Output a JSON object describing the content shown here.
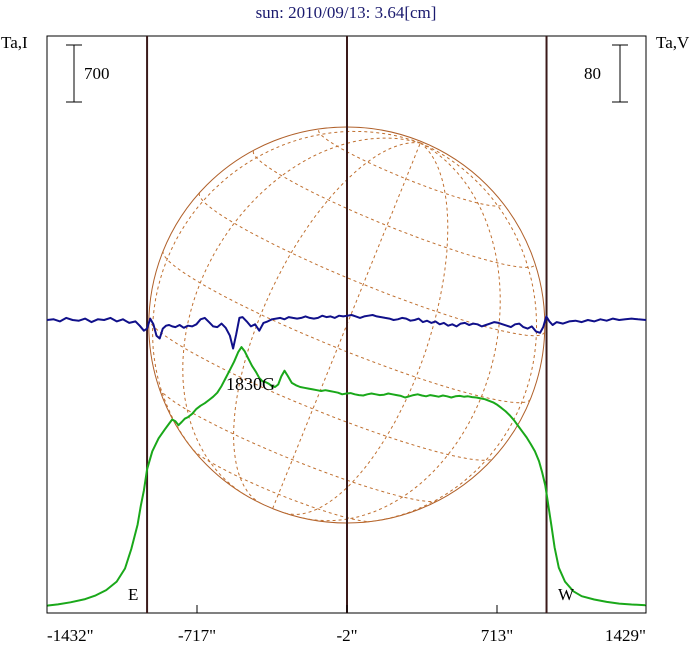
{
  "title": "sun: 2010/09/13: 3.64[cm]",
  "left_axis_label": "Ta,I",
  "right_axis_label": "Ta,V",
  "left_scale_bar_label": "700",
  "right_scale_bar_label": "80",
  "limb_labels": {
    "east": "E",
    "west": "W"
  },
  "annotation": "1830G",
  "x_tick_labels": [
    "-1432\"",
    "-717\"",
    "-2\"",
    "713\"",
    "1429\""
  ],
  "colors": {
    "title": "#1a1a6e",
    "intensity": "#1aa81a",
    "polarization": "#10108a",
    "limb_lines": "#3a1a1a",
    "disk": "#b0602a",
    "grid": "#c07030"
  },
  "chart_data": {
    "type": "line",
    "title": "sun: 2010/09/13: 3.64[cm]",
    "xlabel": "",
    "x_ticks": [
      -1432,
      -717,
      -2,
      713,
      1429
    ],
    "xlim": [
      -1432,
      1429
    ],
    "limb_positions": [
      -955,
      951
    ],
    "scale_bars": {
      "intensity": 700,
      "polarization": 80
    },
    "series": [
      {
        "name": "Ta,I",
        "axis": "left",
        "x": [
          -1432,
          -1380,
          -1320,
          -1250,
          -1200,
          -1150,
          -1100,
          -1060,
          -1030,
          -1000,
          -985,
          -970,
          -955,
          -930,
          -900,
          -870,
          -850,
          -835,
          -820,
          -805,
          -790,
          -775,
          -760,
          -740,
          -720,
          -700,
          -680,
          -660,
          -640,
          -620,
          -600,
          -580,
          -560,
          -540,
          -520,
          -505,
          -490,
          -475,
          -455,
          -435,
          -420,
          -405,
          -390,
          -375,
          -360,
          -345,
          -330,
          -315,
          -300,
          -285,
          -265,
          -245,
          -225,
          -205,
          -185,
          -165,
          -145,
          -125,
          -105,
          -85,
          -65,
          -45,
          -25,
          -5,
          15,
          35,
          55,
          75,
          95,
          115,
          135,
          155,
          175,
          195,
          215,
          235,
          255,
          275,
          295,
          315,
          335,
          355,
          375,
          395,
          415,
          435,
          455,
          475,
          495,
          515,
          535,
          555,
          575,
          595,
          615,
          635,
          655,
          675,
          695,
          715,
          735,
          755,
          775,
          795,
          815,
          835,
          855,
          875,
          895,
          915,
          930,
          945,
          960,
          975,
          990,
          1010,
          1040,
          1080,
          1120,
          1180,
          1240,
          1300,
          1360,
          1429
        ],
        "y": [
          5,
          20,
          45,
          85,
          130,
          195,
          300,
          460,
          700,
          1000,
          1230,
          1420,
          1680,
          1900,
          2060,
          2170,
          2240,
          2290,
          2270,
          2220,
          2260,
          2300,
          2320,
          2360,
          2420,
          2460,
          2490,
          2530,
          2570,
          2620,
          2700,
          2800,
          2900,
          3000,
          3120,
          3180,
          3130,
          3050,
          2950,
          2870,
          2800,
          2760,
          2750,
          2730,
          2700,
          2690,
          2720,
          2820,
          2890,
          2830,
          2740,
          2710,
          2690,
          2680,
          2670,
          2660,
          2650,
          2640,
          2650,
          2640,
          2630,
          2620,
          2600,
          2610,
          2615,
          2600,
          2590,
          2585,
          2600,
          2610,
          2600,
          2590,
          2595,
          2610,
          2600,
          2590,
          2580,
          2560,
          2575,
          2590,
          2600,
          2585,
          2575,
          2590,
          2580,
          2570,
          2585,
          2575,
          2560,
          2575,
          2580,
          2570,
          2575,
          2565,
          2560,
          2550,
          2540,
          2520,
          2500,
          2470,
          2430,
          2390,
          2340,
          2280,
          2210,
          2140,
          2070,
          1990,
          1900,
          1780,
          1640,
          1480,
          1230,
          980,
          720,
          470,
          300,
          180,
          120,
          80,
          50,
          30,
          18,
          10
        ]
      },
      {
        "name": "Ta,V",
        "axis": "right",
        "x": [
          -1432,
          -1400,
          -1370,
          -1340,
          -1310,
          -1280,
          -1250,
          -1220,
          -1190,
          -1160,
          -1130,
          -1100,
          -1070,
          -1040,
          -1010,
          -990,
          -970,
          -955,
          -940,
          -925,
          -910,
          -895,
          -880,
          -865,
          -850,
          -835,
          -820,
          -800,
          -780,
          -760,
          -740,
          -720,
          -700,
          -680,
          -660,
          -640,
          -620,
          -600,
          -580,
          -560,
          -545,
          -530,
          -515,
          -500,
          -480,
          -460,
          -440,
          -420,
          -400,
          -380,
          -360,
          -340,
          -320,
          -300,
          -280,
          -260,
          -240,
          -220,
          -200,
          -180,
          -160,
          -140,
          -120,
          -100,
          -80,
          -60,
          -40,
          -20,
          0,
          20,
          40,
          60,
          80,
          100,
          120,
          140,
          160,
          180,
          200,
          220,
          240,
          260,
          280,
          300,
          320,
          340,
          360,
          380,
          400,
          420,
          440,
          460,
          480,
          500,
          520,
          540,
          560,
          580,
          600,
          620,
          640,
          660,
          680,
          700,
          720,
          740,
          760,
          780,
          800,
          820,
          840,
          860,
          880,
          900,
          920,
          935,
          950,
          965,
          980,
          1000,
          1030,
          1060,
          1090,
          1120,
          1150,
          1180,
          1210,
          1240,
          1270,
          1300,
          1330,
          1360,
          1390,
          1429
        ],
        "y": [
          0,
          0.1,
          -0.2,
          0.3,
          0,
          -0.1,
          0.2,
          -0.3,
          0.1,
          0,
          0.3,
          -0.2,
          0.1,
          -0.4,
          -0.2,
          -0.8,
          -1.5,
          -1.2,
          0.2,
          -0.6,
          -2.2,
          -2.6,
          -1.2,
          -0.8,
          -0.7,
          -0.9,
          -1.0,
          -0.7,
          -1.1,
          -0.8,
          -0.9,
          -0.6,
          0.1,
          0.3,
          -0.3,
          -0.9,
          -1.0,
          -0.5,
          -1.1,
          -2.2,
          -4.0,
          -2.0,
          0.3,
          0.4,
          -0.2,
          -0.9,
          -0.6,
          -1.5,
          -0.4,
          -0.2,
          0.1,
          0.2,
          0.3,
          0.1,
          0.4,
          0.3,
          0.2,
          0.3,
          0.5,
          0.3,
          0.2,
          0.3,
          0.6,
          0.4,
          0.5,
          0.3,
          0.6,
          0.5,
          0.6,
          0.7,
          0.5,
          0.3,
          0.5,
          0.6,
          0.7,
          0.5,
          0.4,
          0.3,
          0.2,
          0.0,
          0.1,
          0.3,
          0.2,
          -0.1,
          0.0,
          0.2,
          -0.3,
          -0.1,
          -0.4,
          -0.2,
          -0.6,
          -0.4,
          -0.8,
          -0.6,
          -0.9,
          -0.5,
          -0.4,
          -0.7,
          -0.5,
          -0.6,
          -0.9,
          -0.7,
          -0.5,
          -0.3,
          -0.4,
          -0.6,
          -0.8,
          -1.0,
          -0.6,
          -0.5,
          -1.0,
          -1.2,
          -0.9,
          -1.6,
          -1.8,
          -1.0,
          0.5,
          -0.2,
          -0.7,
          -0.3,
          -0.5,
          -0.2,
          -0.1,
          -0.3,
          0.0,
          -0.2,
          0.1,
          -0.1,
          0.2,
          0.0,
          0.1,
          0.2,
          0.1,
          0.0
        ]
      }
    ],
    "grid": false,
    "legend": "none"
  }
}
